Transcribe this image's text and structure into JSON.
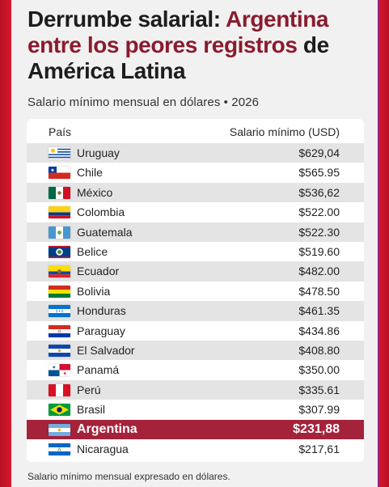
{
  "title": {
    "part1": "Derrumbe salarial: ",
    "accent": "Argentina entre los peores registros",
    "part2": " de América Latina"
  },
  "subtitle": "Salario mínimo mensual en dólares • 2026",
  "footer": "Salario mínimo mensual expresado en dólares.",
  "colors": {
    "highlight": "#a4223a",
    "accent": "#8a1b2e",
    "border": "#c8102e"
  },
  "chart_data": {
    "type": "table",
    "columns": [
      "País",
      "Salario mínimo (USD)"
    ],
    "highlight": "Argentina",
    "rows": [
      {
        "country": "Uruguay",
        "value": "$629,04",
        "flag": "uruguay"
      },
      {
        "country": "Chile",
        "value": "$565.95",
        "flag": "chile"
      },
      {
        "country": "México",
        "value": "$536,62",
        "flag": "mexico"
      },
      {
        "country": "Colombia",
        "value": "$522.00",
        "flag": "colombia"
      },
      {
        "country": "Guatemala",
        "value": "$522.30",
        "flag": "guatemala"
      },
      {
        "country": "Belice",
        "value": "$519.60",
        "flag": "belize"
      },
      {
        "country": "Ecuador",
        "value": "$482.00",
        "flag": "ecuador"
      },
      {
        "country": "Bolivia",
        "value": "$478.50",
        "flag": "bolivia"
      },
      {
        "country": "Honduras",
        "value": "$461.35",
        "flag": "honduras"
      },
      {
        "country": "Paraguay",
        "value": "$434.86",
        "flag": "paraguay"
      },
      {
        "country": "El Salvador",
        "value": "$408.80",
        "flag": "el-salvador"
      },
      {
        "country": "Panamá",
        "value": "$350.00",
        "flag": "panama"
      },
      {
        "country": "Perú",
        "value": "$335.61",
        "flag": "peru"
      },
      {
        "country": "Brasil",
        "value": "$307.99",
        "flag": "brazil"
      },
      {
        "country": "Argentina",
        "value": "$231,88",
        "flag": "argentina"
      },
      {
        "country": "Nicaragua",
        "value": "$217,61",
        "flag": "nicaragua"
      }
    ]
  }
}
